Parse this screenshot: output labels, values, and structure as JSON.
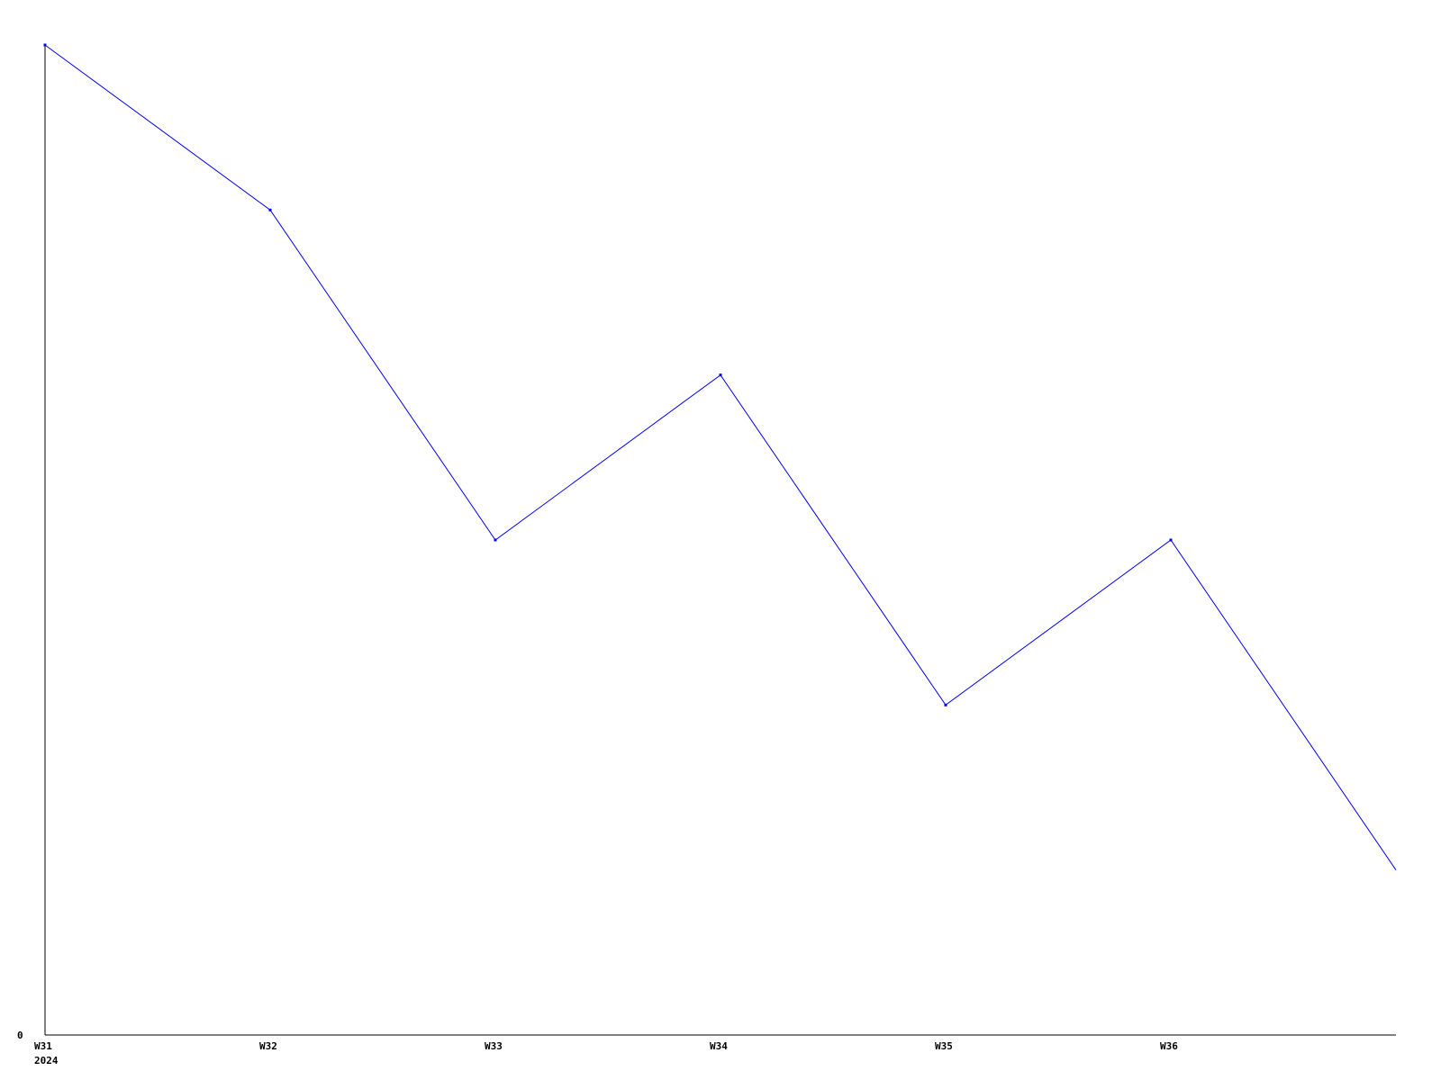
{
  "chart_data": {
    "type": "line",
    "categories": [
      "W31",
      "W32",
      "W33",
      "W34",
      "W35",
      "W36",
      ""
    ],
    "x_sublabels": [
      "2024",
      "",
      "",
      "",
      "",
      "",
      ""
    ],
    "series": [
      {
        "values": [
          6,
          5,
          3,
          4,
          2,
          3,
          1
        ],
        "color": "#0000ff"
      }
    ],
    "y_tick_labels": [
      "0"
    ],
    "ylim": [
      0,
      6
    ],
    "title": "",
    "xlabel": "",
    "ylabel": "",
    "grid": false,
    "axis_color": "#000000"
  }
}
